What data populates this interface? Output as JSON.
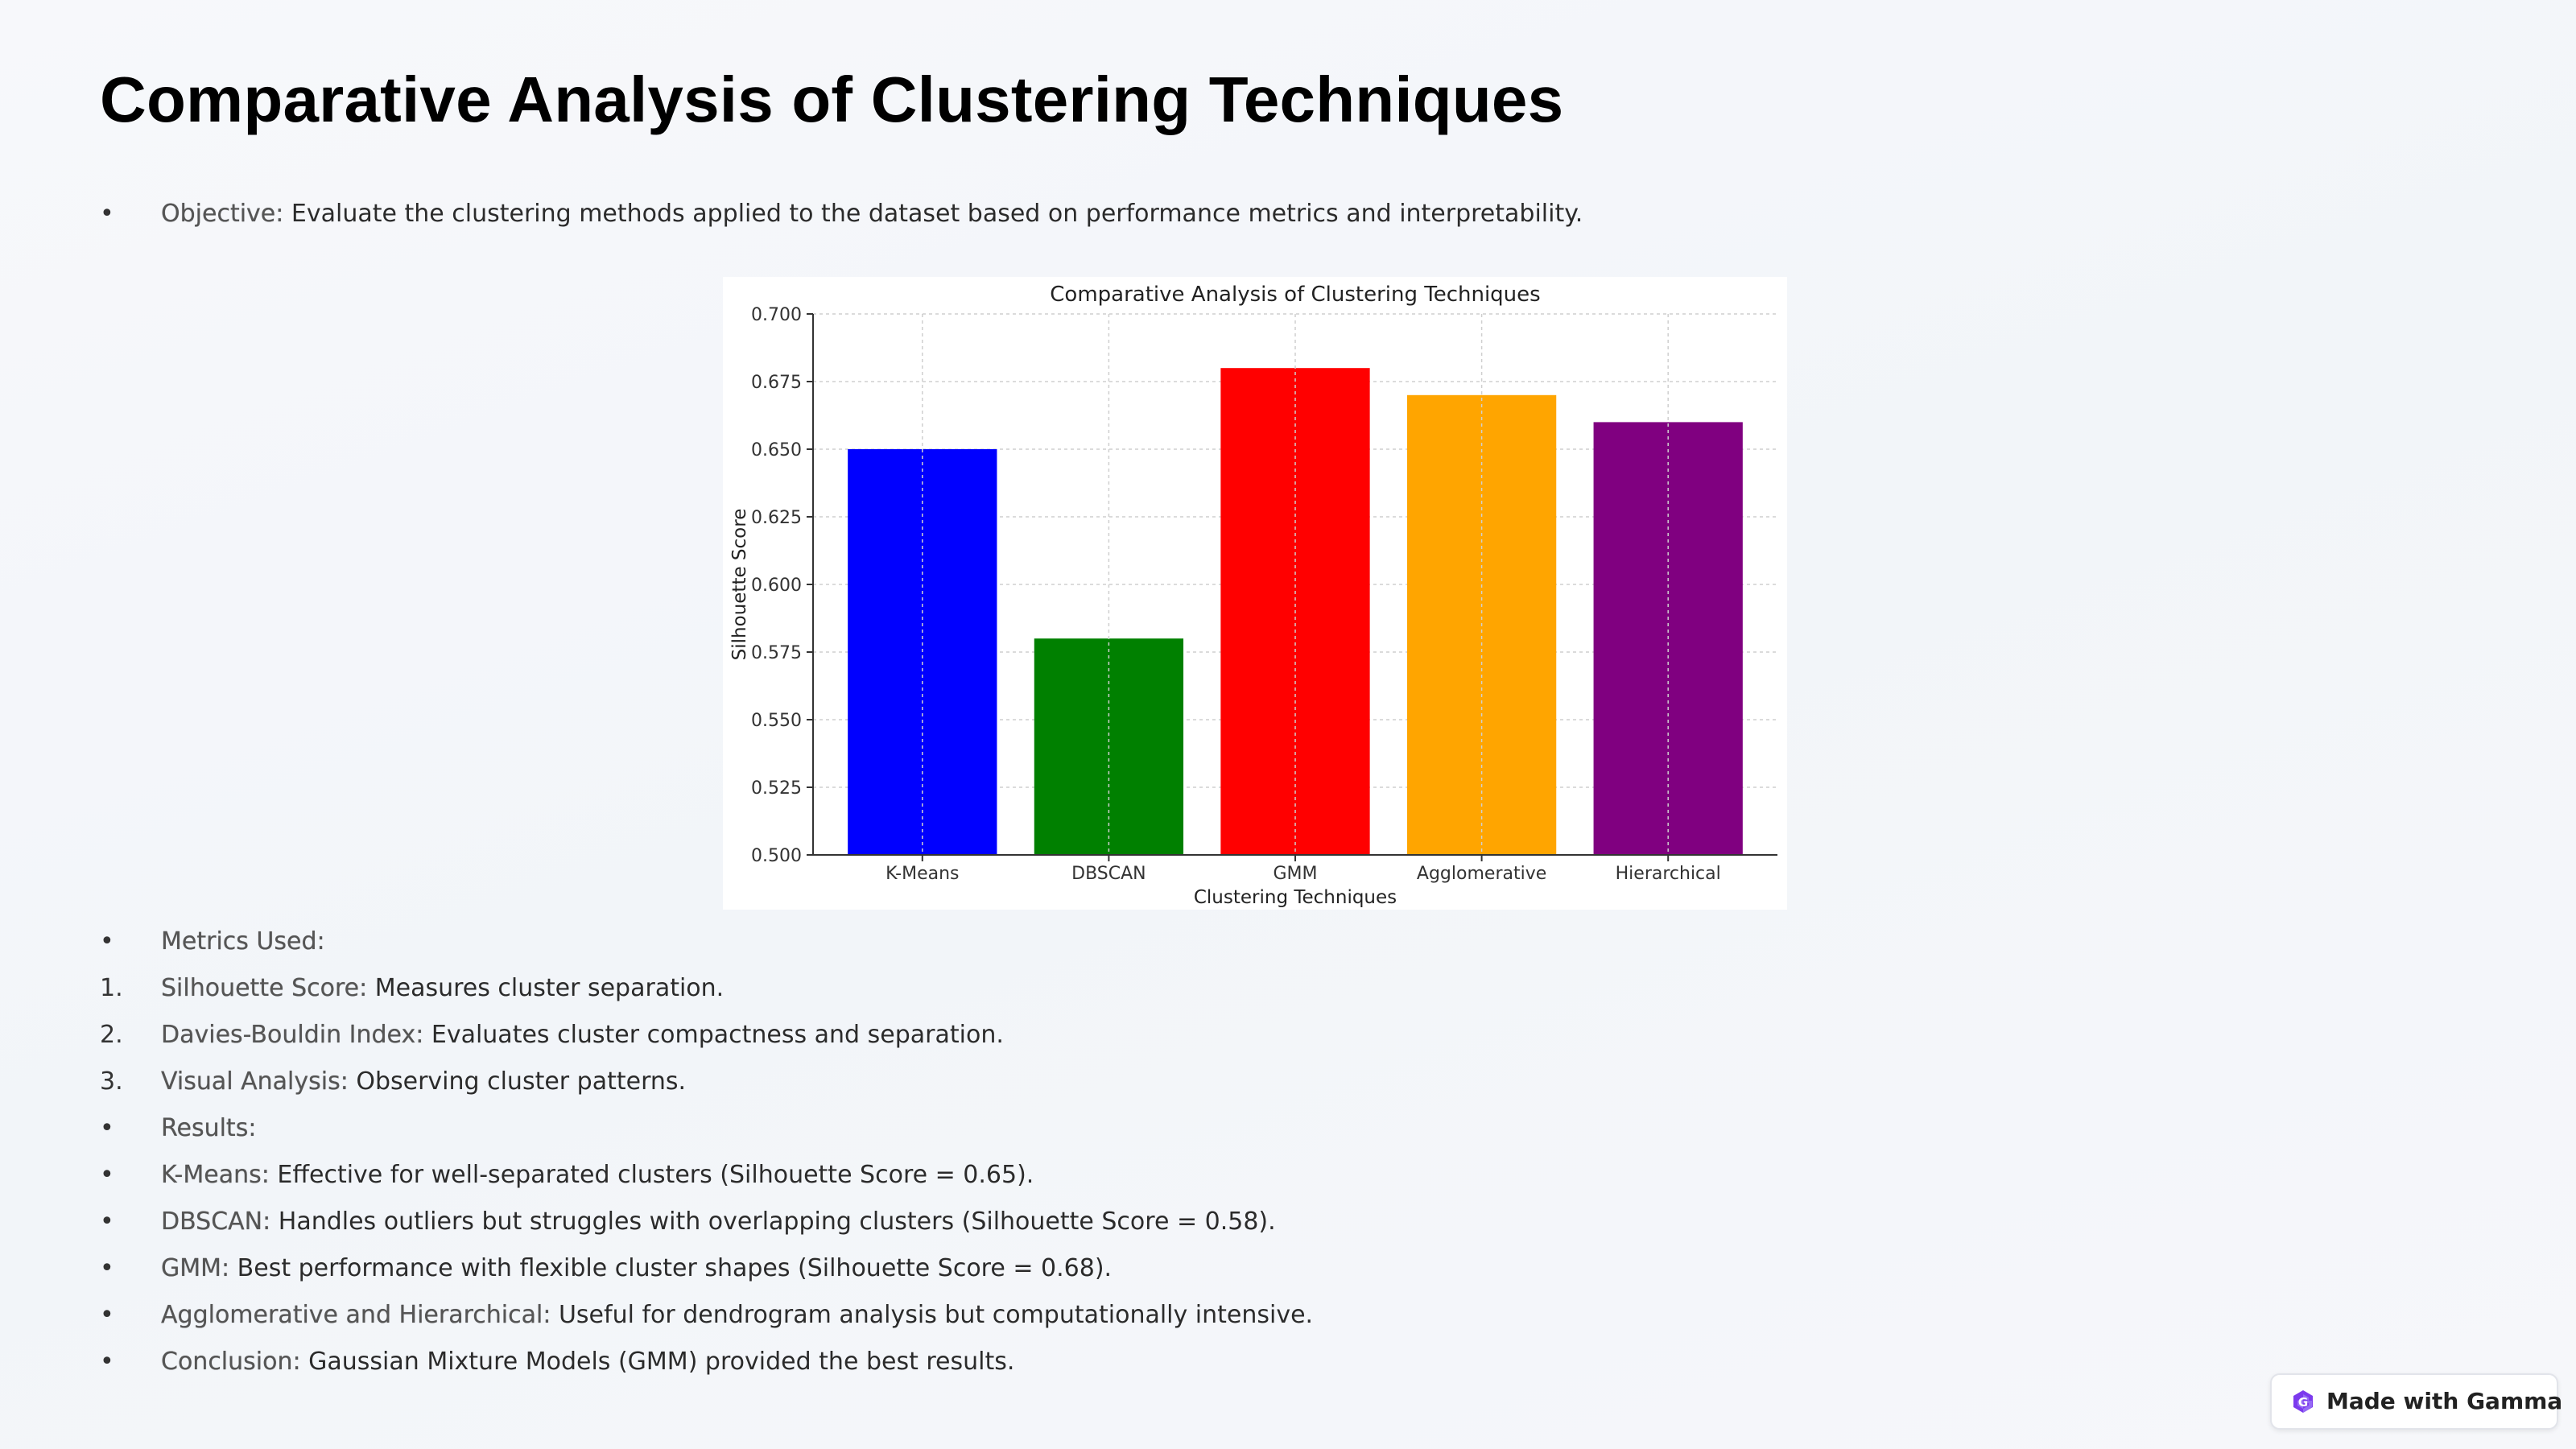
{
  "slide": {
    "title": "Comparative Analysis of Clustering Techniques",
    "lines": [
      {
        "marker": "•",
        "label": "Objective:",
        "text": " Evaluate the clustering methods applied to the dataset based on performance metrics and interpretability."
      },
      {
        "marker": "•",
        "label": "Metrics Used:",
        "text": ""
      },
      {
        "marker": "1.",
        "label": "Silhouette Score:",
        "text": " Measures cluster separation."
      },
      {
        "marker": "2.",
        "label": "Davies-Bouldin Index:",
        "text": " Evaluates cluster compactness and separation."
      },
      {
        "marker": "3.",
        "label": "Visual Analysis:",
        "text": " Observing cluster patterns."
      },
      {
        "marker": "•",
        "label": "Results:",
        "text": ""
      },
      {
        "marker": "•",
        "label": "K-Means:",
        "text": " Effective for well-separated clusters (Silhouette Score = 0.65)."
      },
      {
        "marker": "•",
        "label": "DBSCAN:",
        "text": " Handles outliers but struggles with overlapping clusters (Silhouette Score = 0.58)."
      },
      {
        "marker": "•",
        "label": "GMM:",
        "text": " Best performance with flexible cluster shapes (Silhouette Score = 0.68)."
      },
      {
        "marker": "•",
        "label": "Agglomerative and Hierarchical:",
        "text": " Useful for dendrogram analysis but computationally intensive."
      },
      {
        "marker": "•",
        "label": "Conclusion:",
        "text": " Gaussian Mixture Models (GMM) provided the best results."
      }
    ]
  },
  "chart_data": {
    "type": "bar",
    "title": "Comparative Analysis of Clustering Techniques",
    "xlabel": "Clustering Techniques",
    "ylabel": "Silhouette Score",
    "categories": [
      "K-Means",
      "DBSCAN",
      "GMM",
      "Agglomerative",
      "Hierarchical"
    ],
    "values": [
      0.65,
      0.58,
      0.68,
      0.67,
      0.66
    ],
    "colors": [
      "#0000ff",
      "#008000",
      "#ff0000",
      "#ffa500",
      "#800080"
    ],
    "ylim": [
      0.5,
      0.7
    ],
    "yticks": [
      "0.500",
      "0.525",
      "0.550",
      "0.575",
      "0.600",
      "0.625",
      "0.650",
      "0.675",
      "0.700"
    ],
    "grid": true,
    "grid_style": "dashed"
  },
  "badge": {
    "label": "Made with Gamma",
    "icon": "gamma-logo-icon"
  }
}
